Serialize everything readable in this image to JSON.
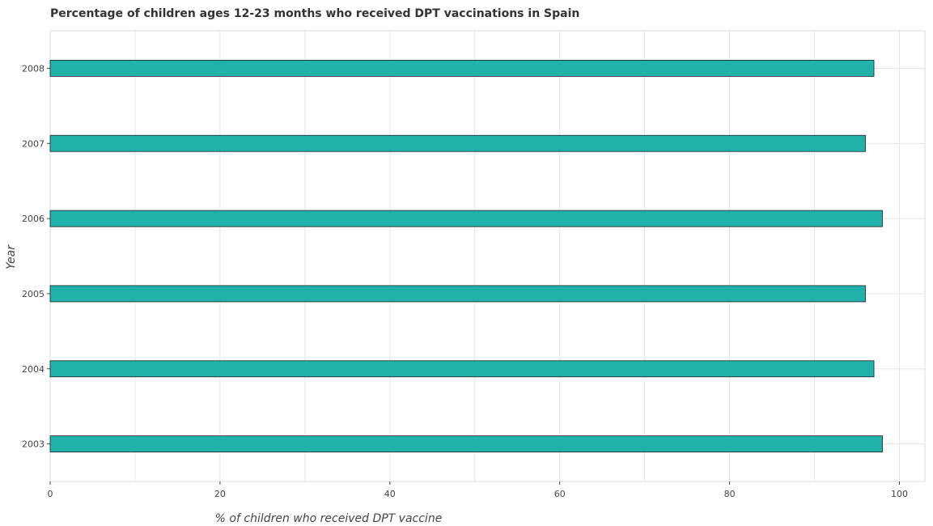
{
  "chart_data": {
    "type": "bar",
    "orientation": "horizontal",
    "title": "Percentage of children ages 12-23 months who received DPT vaccinations in Spain",
    "xlabel": "% of children who received DPT vaccine",
    "ylabel": "Year",
    "categories": [
      "2003",
      "2004",
      "2005",
      "2006",
      "2007",
      "2008"
    ],
    "values": [
      98,
      97,
      96,
      98,
      96,
      97
    ],
    "xlim": [
      0,
      103
    ],
    "xticks": [
      0,
      20,
      40,
      60,
      80,
      100
    ],
    "xtick_labels": [
      "0",
      "20",
      "40",
      "60",
      "80",
      "100"
    ],
    "grid": true,
    "bar_color": "#20b2aa",
    "bar_edge_color": "#222222"
  }
}
